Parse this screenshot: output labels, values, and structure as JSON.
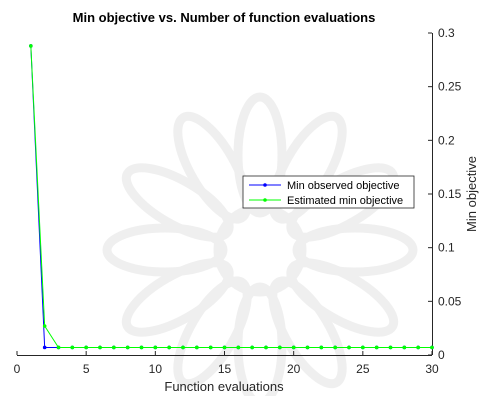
{
  "chart_data": {
    "type": "line",
    "title": "Min objective vs. Number of function evaluations",
    "xlabel": "Function evaluations",
    "ylabel": "Min objective",
    "xlim": [
      0,
      30
    ],
    "ylim": [
      0,
      0.3
    ],
    "y_axis_side": "right",
    "grid": false,
    "legend_position": "center-right",
    "x_ticks": [
      0,
      5,
      10,
      15,
      20,
      25,
      30
    ],
    "y_ticks": [
      0,
      0.05,
      0.1,
      0.15,
      0.2,
      0.25,
      0.3
    ],
    "x_tick_labels": [
      "0",
      "5",
      "10",
      "15",
      "20",
      "25",
      "30"
    ],
    "y_tick_labels": [
      "0",
      "0.05",
      "0.1",
      "0.15",
      "0.2",
      "0.25",
      "0.3"
    ],
    "x": [
      1,
      2,
      3,
      4,
      5,
      6,
      7,
      8,
      9,
      10,
      11,
      12,
      13,
      14,
      15,
      16,
      17,
      18,
      19,
      20,
      21,
      22,
      23,
      24,
      25,
      26,
      27,
      28,
      29,
      30
    ],
    "series": [
      {
        "name": "Min observed objective",
        "color": "#0000ff",
        "values": [
          0.288,
          0.007,
          0.007,
          0.007,
          0.007,
          0.007,
          0.007,
          0.007,
          0.007,
          0.007,
          0.007,
          0.007,
          0.007,
          0.007,
          0.007,
          0.007,
          0.007,
          0.007,
          0.007,
          0.007,
          0.007,
          0.007,
          0.007,
          0.007,
          0.007,
          0.007,
          0.007,
          0.007,
          0.007,
          0.007
        ]
      },
      {
        "name": "Estimated min objective",
        "color": "#00ff00",
        "values": [
          0.288,
          0.027,
          0.007,
          0.007,
          0.007,
          0.007,
          0.007,
          0.007,
          0.007,
          0.007,
          0.007,
          0.007,
          0.007,
          0.007,
          0.007,
          0.007,
          0.007,
          0.007,
          0.007,
          0.007,
          0.007,
          0.007,
          0.007,
          0.007,
          0.007,
          0.007,
          0.007,
          0.007,
          0.007,
          0.007
        ]
      }
    ]
  }
}
